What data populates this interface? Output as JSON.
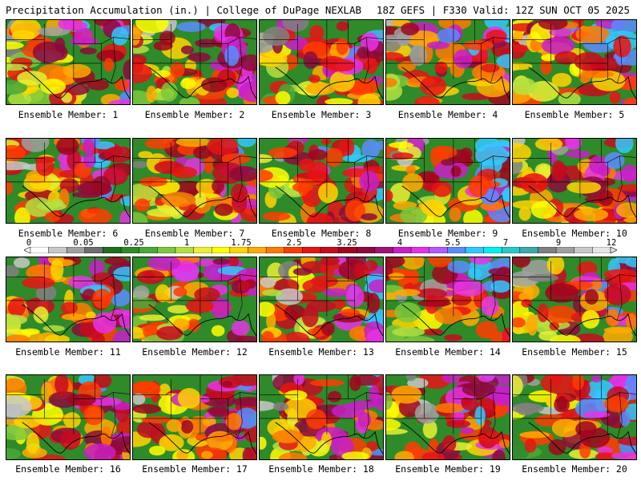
{
  "header": {
    "title": "Precipitation Accumulation (in.) | College of DuPage NEXLAB",
    "run_info": "18Z GEFS | F330 Valid: 12Z SUN OCT 05 2025"
  },
  "panel_label_prefix": "Ensemble Member: ",
  "members": [
    1,
    2,
    3,
    4,
    5,
    6,
    7,
    8,
    9,
    10,
    11,
    12,
    13,
    14,
    15,
    16,
    17,
    18,
    19,
    20
  ],
  "colorbar": {
    "tick_labels": [
      "0",
      "0.05",
      "0.25",
      "1",
      "1.75",
      "2.5",
      "3.25",
      "4",
      "5.5",
      "7",
      "9",
      "12"
    ],
    "colors": [
      "#ffffff",
      "#c8c8c8",
      "#a0a0a0",
      "#6e6e6e",
      "#1e6e1e",
      "#2f8a2a",
      "#4aa83a",
      "#7cc83c",
      "#b4e040",
      "#e8f032",
      "#ffff00",
      "#ffd400",
      "#ffaa00",
      "#ff7a00",
      "#ff3c00",
      "#e61414",
      "#c80a1e",
      "#a0061e",
      "#8c0a3c",
      "#a01478",
      "#c81ec8",
      "#e632e6",
      "#b45aff",
      "#5a8cff",
      "#32c8ff",
      "#00f0f0",
      "#28c8c8",
      "#3caaaa",
      "#808080",
      "#a0a0a0",
      "#c8c8c8",
      "#e6e6e6"
    ]
  }
}
